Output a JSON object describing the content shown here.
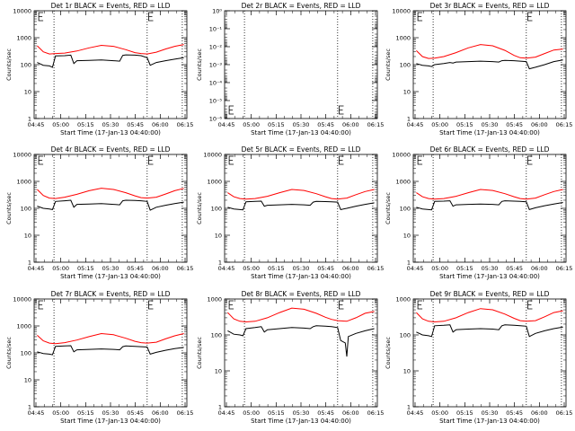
{
  "chart_data": [
    {
      "type": "line",
      "title": "Det 1r BLACK = Events, RED = LLD",
      "xlabel": "Start Time (17-Jan-13 04:40:00)",
      "ylabel": "Counts/sec",
      "yscale": "log",
      "ylim": [
        1,
        10000
      ],
      "ytick_labels": [
        "1",
        "10",
        "100",
        "1000",
        "10000"
      ],
      "xlim": [
        0,
        100
      ],
      "xtick_labels": [
        "04:45",
        "05:00",
        "05:15",
        "05:30",
        "05:45",
        "06:00",
        "06:15"
      ],
      "vlines": [
        13,
        74,
        97
      ],
      "markers_E": [
        3,
        75
      ],
      "series": [
        {
          "color": "#ff0000",
          "x": [
            2,
            6,
            10,
            14,
            20,
            28,
            36,
            44,
            52,
            60,
            66,
            70,
            74,
            80,
            86,
            92,
            98
          ],
          "y": [
            500,
            300,
            250,
            260,
            270,
            320,
            420,
            520,
            480,
            360,
            280,
            260,
            250,
            290,
            380,
            480,
            560
          ]
        },
        {
          "color": "#000000",
          "x": [
            2,
            6,
            10,
            12,
            14,
            20,
            24,
            26,
            28,
            36,
            44,
            52,
            56,
            58,
            60,
            66,
            70,
            74,
            76,
            80,
            86,
            92,
            98
          ],
          "y": [
            120,
            95,
            90,
            80,
            210,
            215,
            225,
            110,
            140,
            145,
            150,
            140,
            135,
            220,
            230,
            225,
            215,
            180,
            95,
            120,
            140,
            160,
            180
          ]
        }
      ]
    },
    {
      "type": "line",
      "title": "Det 2r BLACK = Events, RED = LLD",
      "xlabel": "Start Time (17-Jan-13 04:40:00)",
      "ylabel": "Counts/sec",
      "yscale": "log",
      "ylim": [
        1,
        1e-06
      ],
      "ytick_labels": [
        "10⁻⁶",
        "10⁻⁵",
        "10⁻⁴",
        "10⁻³",
        "10⁻²",
        "10⁻¹",
        "10⁰"
      ],
      "xlim": [
        0,
        100
      ],
      "xtick_labels": [
        "04:45",
        "05:00",
        "05:15",
        "05:30",
        "05:45",
        "06:00",
        "06:15"
      ],
      "vlines": [
        13,
        74,
        97
      ],
      "markers_E": [
        3,
        75
      ],
      "series": []
    },
    {
      "type": "line",
      "title": "Det 3r BLACK = Events, RED = LLD",
      "xlabel": "Start Time (17-Jan-13 04:40:00)",
      "ylabel": "Counts/sec",
      "yscale": "log",
      "ylim": [
        1,
        10000
      ],
      "ytick_labels": [
        "1",
        "10",
        "100",
        "1000",
        "10000"
      ],
      "xlim": [
        0,
        100
      ],
      "xtick_labels": [
        "04:45",
        "05:00",
        "05:15",
        "05:30",
        "05:45",
        "06:00",
        "06:15"
      ],
      "vlines": [
        13,
        74,
        97
      ],
      "markers_E": [
        3,
        75
      ],
      "series": [
        {
          "color": "#ff0000",
          "x": [
            2,
            6,
            10,
            14,
            20,
            28,
            36,
            44,
            52,
            60,
            66,
            70,
            74,
            80,
            86,
            92,
            98
          ],
          "y": [
            330,
            200,
            170,
            175,
            200,
            280,
            420,
            560,
            500,
            340,
            220,
            180,
            175,
            190,
            260,
            350,
            380
          ]
        },
        {
          "color": "#000000",
          "x": [
            2,
            6,
            10,
            12,
            14,
            20,
            24,
            26,
            28,
            36,
            44,
            52,
            56,
            58,
            60,
            66,
            70,
            74,
            76,
            80,
            86,
            92,
            98
          ],
          "y": [
            110,
            95,
            90,
            85,
            100,
            110,
            120,
            115,
            125,
            130,
            135,
            130,
            125,
            140,
            145,
            140,
            135,
            130,
            70,
            80,
            100,
            130,
            150
          ]
        }
      ]
    },
    {
      "type": "line",
      "title": "Det 4r BLACK = Events, RED = LLD",
      "xlabel": "Start Time (17-Jan-13 04:40:00)",
      "ylabel": "Counts/sec",
      "yscale": "log",
      "ylim": [
        1,
        10000
      ],
      "ytick_labels": [
        "1",
        "10",
        "100",
        "1000",
        "10000"
      ],
      "xlim": [
        0,
        100
      ],
      "xtick_labels": [
        "04:45",
        "05:00",
        "05:15",
        "05:30",
        "05:45",
        "06:00",
        "06:15"
      ],
      "vlines": [
        13,
        74,
        97
      ],
      "markers_E": [
        3,
        75
      ],
      "series": [
        {
          "color": "#ff0000",
          "x": [
            2,
            6,
            10,
            14,
            20,
            28,
            36,
            44,
            52,
            60,
            66,
            70,
            74,
            80,
            86,
            92,
            98
          ],
          "y": [
            500,
            300,
            240,
            230,
            260,
            330,
            450,
            560,
            500,
            380,
            290,
            250,
            240,
            260,
            340,
            450,
            550
          ]
        },
        {
          "color": "#000000",
          "x": [
            2,
            6,
            10,
            12,
            14,
            20,
            24,
            26,
            28,
            36,
            44,
            52,
            56,
            58,
            60,
            66,
            70,
            74,
            76,
            80,
            86,
            92,
            98
          ],
          "y": [
            120,
            100,
            95,
            90,
            180,
            190,
            200,
            110,
            140,
            145,
            150,
            140,
            135,
            190,
            200,
            195,
            190,
            180,
            85,
            110,
            130,
            150,
            170
          ]
        }
      ]
    },
    {
      "type": "line",
      "title": "Det 5r BLACK = Events, RED = LLD",
      "xlabel": "Start Time (17-Jan-13 04:40:00)",
      "ylabel": "Counts/sec",
      "yscale": "log",
      "ylim": [
        1,
        10000
      ],
      "ytick_labels": [
        "1",
        "10",
        "100",
        "1000",
        "10000"
      ],
      "xlim": [
        0,
        100
      ],
      "xtick_labels": [
        "04:45",
        "05:00",
        "05:15",
        "05:30",
        "05:45",
        "06:00",
        "06:15"
      ],
      "vlines": [
        13,
        74,
        97
      ],
      "markers_E": [
        3,
        75
      ],
      "series": [
        {
          "color": "#ff0000",
          "x": [
            2,
            6,
            10,
            14,
            20,
            28,
            36,
            44,
            52,
            60,
            66,
            70,
            74,
            80,
            86,
            92,
            98
          ],
          "y": [
            380,
            270,
            230,
            220,
            230,
            280,
            380,
            500,
            460,
            350,
            270,
            230,
            220,
            240,
            320,
            420,
            500
          ]
        },
        {
          "color": "#000000",
          "x": [
            2,
            6,
            10,
            12,
            14,
            20,
            24,
            26,
            28,
            36,
            44,
            52,
            56,
            58,
            60,
            66,
            70,
            74,
            76,
            80,
            86,
            92,
            98
          ],
          "y": [
            110,
            95,
            90,
            88,
            175,
            180,
            185,
            120,
            130,
            135,
            140,
            135,
            130,
            170,
            180,
            178,
            175,
            170,
            90,
            100,
            120,
            140,
            160
          ]
        }
      ]
    },
    {
      "type": "line",
      "title": "Det 6r BLACK = Events, RED = LLD",
      "xlabel": "Start Time (17-Jan-13 04:40:00)",
      "ylabel": "Counts/sec",
      "yscale": "log",
      "ylim": [
        1,
        10000
      ],
      "ytick_labels": [
        "1",
        "10",
        "100",
        "1000",
        "10000"
      ],
      "xlim": [
        0,
        100
      ],
      "xtick_labels": [
        "04:45",
        "05:00",
        "05:15",
        "05:30",
        "05:45",
        "06:00",
        "06:15"
      ],
      "vlines": [
        13,
        74,
        97
      ],
      "markers_E": [
        3,
        75
      ],
      "series": [
        {
          "color": "#ff0000",
          "x": [
            2,
            6,
            10,
            14,
            20,
            28,
            36,
            44,
            52,
            60,
            66,
            70,
            74,
            80,
            86,
            92,
            98
          ],
          "y": [
            380,
            270,
            230,
            220,
            230,
            280,
            380,
            500,
            460,
            350,
            270,
            230,
            220,
            240,
            320,
            420,
            500
          ]
        },
        {
          "color": "#000000",
          "x": [
            2,
            6,
            10,
            12,
            14,
            20,
            24,
            26,
            28,
            36,
            44,
            52,
            56,
            58,
            60,
            66,
            70,
            74,
            76,
            80,
            86,
            92,
            98
          ],
          "y": [
            110,
            95,
            90,
            88,
            180,
            185,
            190,
            120,
            135,
            140,
            145,
            140,
            135,
            180,
            190,
            185,
            180,
            175,
            90,
            105,
            125,
            145,
            165
          ]
        }
      ]
    },
    {
      "type": "line",
      "title": "Det 7r BLACK = Events, RED = LLD",
      "xlabel": "Start Time (17-Jan-13 04:40:00)",
      "ylabel": "Counts/sec",
      "yscale": "log",
      "ylim": [
        1,
        10000
      ],
      "ytick_labels": [
        "1",
        "10",
        "100",
        "1000",
        "10000"
      ],
      "xlim": [
        0,
        100
      ],
      "xtick_labels": [
        "04:45",
        "05:00",
        "05:15",
        "05:30",
        "05:45",
        "06:00",
        "06:15"
      ],
      "vlines": [
        13,
        74,
        97
      ],
      "markers_E": [
        3,
        75
      ],
      "series": [
        {
          "color": "#ff0000",
          "x": [
            2,
            6,
            10,
            14,
            20,
            28,
            36,
            44,
            52,
            60,
            66,
            70,
            74,
            80,
            86,
            92,
            98
          ],
          "y": [
            450,
            280,
            230,
            220,
            240,
            300,
            400,
            520,
            470,
            350,
            270,
            240,
            230,
            250,
            330,
            430,
            520
          ]
        },
        {
          "color": "#000000",
          "x": [
            2,
            6,
            10,
            12,
            14,
            20,
            24,
            26,
            28,
            36,
            44,
            52,
            56,
            58,
            60,
            66,
            70,
            74,
            76,
            80,
            86,
            92,
            98
          ],
          "y": [
            110,
            95,
            90,
            85,
            175,
            180,
            185,
            110,
            130,
            135,
            140,
            135,
            130,
            170,
            180,
            175,
            170,
            165,
            90,
            105,
            125,
            145,
            160
          ]
        }
      ]
    },
    {
      "type": "line",
      "title": "Det 8r BLACK = Events, RED = LLD",
      "xlabel": "Start Time (17-Jan-13 04:40:00)",
      "ylabel": "Counts/sec",
      "yscale": "log",
      "ylim": [
        1,
        1000
      ],
      "ytick_labels": [
        "1",
        "10",
        "100",
        "1000"
      ],
      "xlim": [
        0,
        100
      ],
      "xtick_labels": [
        "04:45",
        "05:00",
        "05:15",
        "05:30",
        "05:45",
        "06:00",
        "06:15"
      ],
      "vlines": [
        13,
        74,
        97
      ],
      "markers_E": [
        3,
        75
      ],
      "series": [
        {
          "color": "#ff0000",
          "x": [
            2,
            6,
            10,
            14,
            20,
            28,
            36,
            44,
            52,
            60,
            66,
            70,
            74,
            80,
            86,
            92,
            98
          ],
          "y": [
            420,
            280,
            240,
            230,
            240,
            300,
            420,
            560,
            520,
            400,
            310,
            270,
            250,
            240,
            300,
            400,
            450
          ]
        },
        {
          "color": "#000000",
          "x": [
            2,
            6,
            10,
            12,
            14,
            20,
            24,
            26,
            28,
            36,
            44,
            52,
            56,
            58,
            60,
            66,
            70,
            74,
            76,
            79,
            80,
            81,
            86,
            92,
            98
          ],
          "y": [
            130,
            105,
            100,
            95,
            150,
            160,
            170,
            120,
            140,
            150,
            160,
            155,
            150,
            170,
            180,
            175,
            170,
            160,
            70,
            60,
            25,
            90,
            110,
            130,
            150
          ]
        }
      ]
    },
    {
      "type": "line",
      "title": "Det 9r BLACK = Events, RED = LLD",
      "xlabel": "Start Time (17-Jan-13 04:40:00)",
      "ylabel": "Counts/sec",
      "yscale": "log",
      "ylim": [
        1,
        1000
      ],
      "ytick_labels": [
        "1",
        "10",
        "100",
        "1000"
      ],
      "xlim": [
        0,
        100
      ],
      "xtick_labels": [
        "04:45",
        "05:00",
        "05:15",
        "05:30",
        "05:45",
        "06:00",
        "06:15"
      ],
      "vlines": [
        13,
        74,
        97
      ],
      "markers_E": [
        3,
        75
      ],
      "series": [
        {
          "color": "#ff0000",
          "x": [
            2,
            6,
            10,
            14,
            20,
            28,
            36,
            44,
            52,
            60,
            66,
            70,
            74,
            80,
            86,
            92,
            98
          ],
          "y": [
            420,
            280,
            240,
            230,
            240,
            300,
            420,
            540,
            500,
            380,
            290,
            250,
            240,
            250,
            320,
            420,
            470
          ]
        },
        {
          "color": "#000000",
          "x": [
            2,
            6,
            10,
            12,
            14,
            20,
            24,
            26,
            28,
            36,
            44,
            52,
            56,
            58,
            60,
            66,
            70,
            74,
            76,
            80,
            86,
            92,
            98
          ],
          "y": [
            120,
            100,
            95,
            90,
            180,
            185,
            190,
            120,
            140,
            145,
            150,
            145,
            140,
            180,
            190,
            185,
            180,
            175,
            90,
            110,
            130,
            150,
            165
          ]
        }
      ]
    }
  ]
}
